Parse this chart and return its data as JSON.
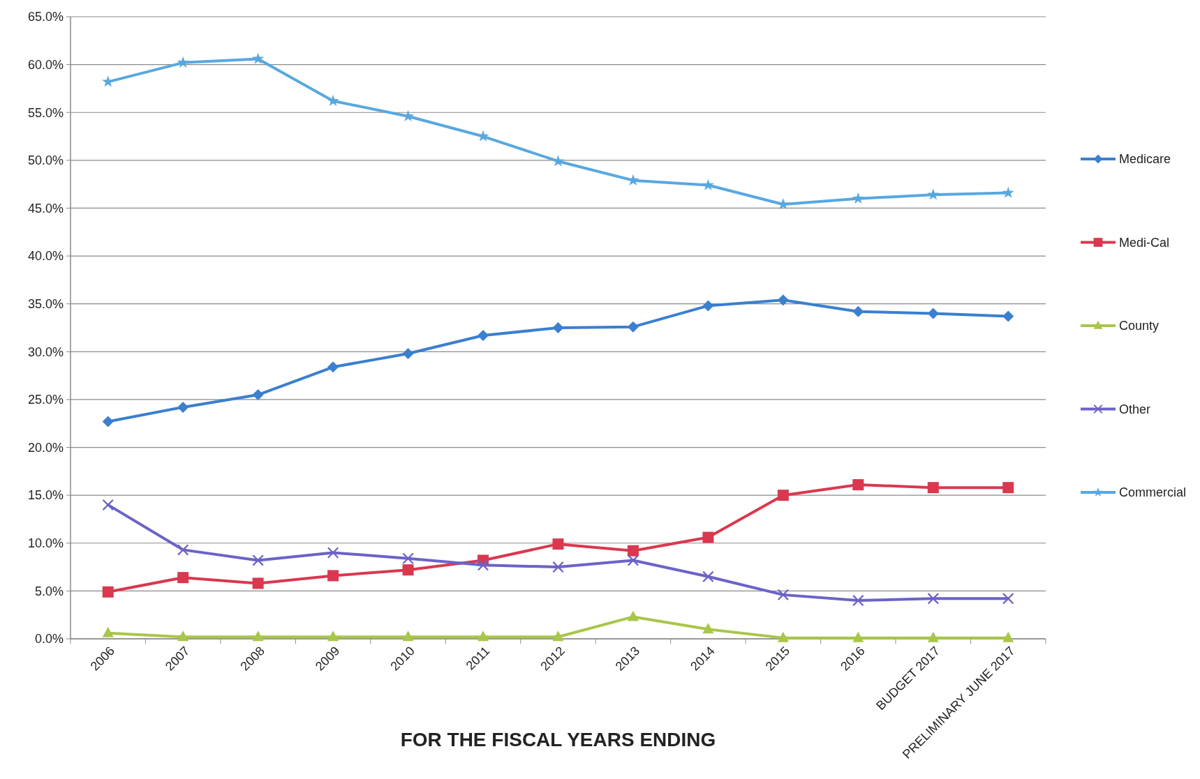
{
  "chart_data": {
    "type": "line",
    "xlabel": "FOR THE FISCAL YEARS ENDING",
    "categories": [
      "2006",
      "2007",
      "2008",
      "2009",
      "2010",
      "2011",
      "2012",
      "2013",
      "2014",
      "2015",
      "2016",
      "BUDGET 2017",
      "PRELIMINARY JUNE 2017"
    ],
    "series": [
      {
        "name": "Medicare",
        "color": "#3a7fd0",
        "marker": "diamond",
        "values": [
          22.7,
          24.2,
          25.5,
          28.4,
          29.8,
          31.7,
          32.5,
          32.6,
          34.8,
          35.4,
          34.2,
          34.0,
          33.7
        ]
      },
      {
        "name": "Medi-Cal",
        "color": "#d9384f",
        "marker": "square",
        "values": [
          4.9,
          6.4,
          5.8,
          6.6,
          7.2,
          8.2,
          9.9,
          9.2,
          10.6,
          15.0,
          16.1,
          15.8,
          15.8
        ]
      },
      {
        "name": "County",
        "color": "#a8c64a",
        "marker": "triangle",
        "values": [
          0.6,
          0.2,
          0.2,
          0.2,
          0.2,
          0.2,
          0.2,
          2.3,
          1.0,
          0.1,
          0.1,
          0.1,
          0.1
        ]
      },
      {
        "name": "Other",
        "color": "#6b63c8",
        "marker": "cross",
        "values": [
          14.0,
          9.3,
          8.2,
          9.0,
          8.4,
          7.7,
          7.5,
          8.2,
          6.5,
          4.6,
          4.0,
          4.2,
          4.2
        ]
      },
      {
        "name": "Commercial",
        "color": "#58a8e0",
        "marker": "star",
        "values": [
          58.2,
          60.2,
          60.6,
          56.2,
          54.6,
          52.5,
          49.9,
          47.9,
          47.4,
          45.4,
          46.0,
          46.4,
          46.6
        ]
      }
    ],
    "ylim": [
      0,
      65
    ],
    "yticks": [
      {
        "value": 0,
        "label": "0.0%"
      },
      {
        "value": 5,
        "label": "5.0%"
      },
      {
        "value": 10,
        "label": "10.0%"
      },
      {
        "value": 15,
        "label": "15.0%"
      },
      {
        "value": 20,
        "label": "20.0%"
      },
      {
        "value": 25,
        "label": "25.0%"
      },
      {
        "value": 30,
        "label": "30.0%"
      },
      {
        "value": 35,
        "label": "35.0%"
      },
      {
        "value": 40,
        "label": "40.0%"
      },
      {
        "value": 45,
        "label": "45.0%"
      },
      {
        "value": 50,
        "label": "50.0%"
      },
      {
        "value": 55,
        "label": "55.0%"
      },
      {
        "value": 60,
        "label": "60.0%"
      },
      {
        "value": 65,
        "label": "65.0%"
      }
    ],
    "grid": "y",
    "legend": "right"
  }
}
